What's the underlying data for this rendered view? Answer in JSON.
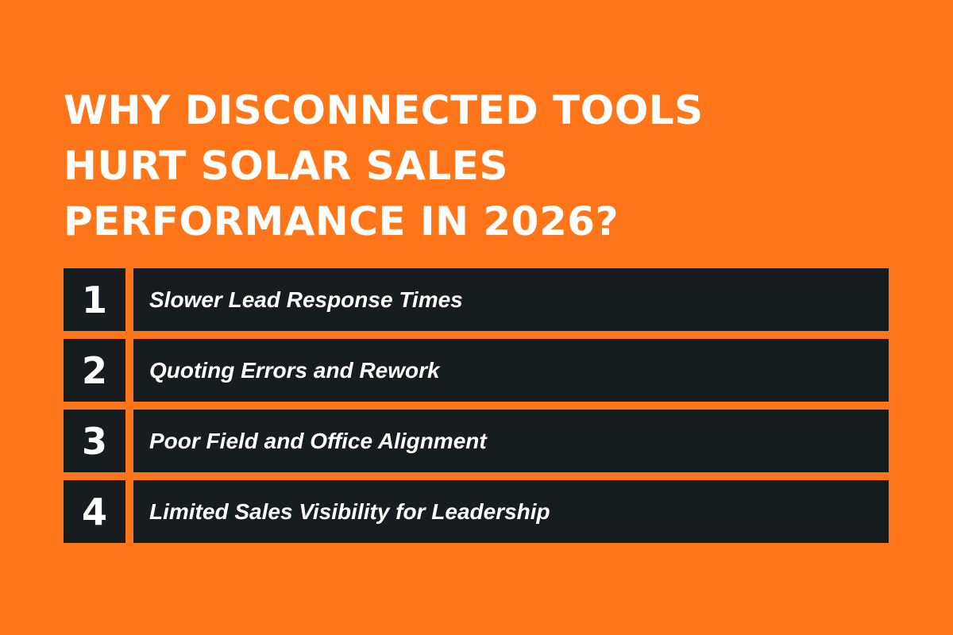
{
  "title": {
    "lines": [
      "WHY DISCONNECTED TOOLS",
      "HURT SOLAR SALES",
      "PERFORMANCE IN 2026?"
    ]
  },
  "items": [
    {
      "number": "1",
      "label": "Slower Lead Response Times"
    },
    {
      "number": "2",
      "label": "Quoting Errors and Rework"
    },
    {
      "number": "3",
      "label": "Poor Field and Office Alignment"
    },
    {
      "number": "4",
      "label": "Limited Sales Visibility for Leadership"
    }
  ],
  "colors": {
    "background": "#FF761A",
    "box": "#171C1F",
    "text": "#FFFFFF"
  }
}
